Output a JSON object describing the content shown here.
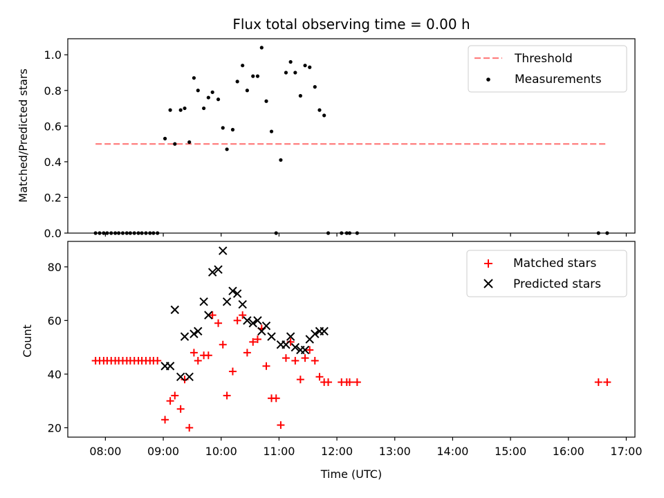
{
  "chart_data": [
    {
      "type": "scatter",
      "title": "Flux total observing time = 0.00 h",
      "xlabel": "",
      "ylabel": "Matched/Predicted stars",
      "xlim": [
        7.35,
        17.15
      ],
      "ylim": [
        0,
        1.09
      ],
      "yticks": [
        0.0,
        0.2,
        0.4,
        0.6,
        0.8,
        1.0
      ],
      "ytick_labels": [
        "0.0",
        "0.2",
        "0.4",
        "0.6",
        "0.8",
        "1.0"
      ],
      "legend_position": "upper right",
      "threshold": {
        "name": "Threshold",
        "value": 0.5,
        "x_range": [
          7.83,
          16.67
        ],
        "color": "#ff7f7f",
        "style": "dashed"
      },
      "series": [
        {
          "name": "Measurements",
          "marker": "dot",
          "color": "#000000",
          "x": [
            7.83,
            7.9,
            7.97,
            8.03,
            8.1,
            8.17,
            8.23,
            8.3,
            8.37,
            8.43,
            8.5,
            8.57,
            8.63,
            8.7,
            8.77,
            8.83,
            8.9,
            9.03,
            9.12,
            9.2,
            9.3,
            9.37,
            9.45,
            9.53,
            9.6,
            9.7,
            9.78,
            9.85,
            9.95,
            10.03,
            10.1,
            10.2,
            10.28,
            10.37,
            10.45,
            10.55,
            10.63,
            10.7,
            10.78,
            10.87,
            10.95,
            11.03,
            11.12,
            11.2,
            11.28,
            11.37,
            11.45,
            11.53,
            11.62,
            11.7,
            11.78,
            11.85,
            12.08,
            12.17,
            12.22,
            12.35,
            16.52,
            16.67
          ],
          "y": [
            0,
            0,
            0,
            0,
            0,
            0,
            0,
            0,
            0,
            0,
            0,
            0,
            0,
            0,
            0,
            0,
            0,
            0.53,
            0.69,
            0.5,
            0.69,
            0.7,
            0.51,
            0.87,
            0.8,
            0.7,
            0.76,
            0.79,
            0.75,
            0.59,
            0.47,
            0.58,
            0.85,
            0.94,
            0.8,
            0.88,
            0.88,
            1.04,
            0.74,
            0.57,
            0,
            0.41,
            0.9,
            0.96,
            0.9,
            0.77,
            0.94,
            0.93,
            0.82,
            0.69,
            0.66,
            0,
            0,
            0,
            0,
            0,
            0,
            0
          ]
        }
      ]
    },
    {
      "type": "scatter",
      "title": "",
      "xlabel": "Time (UTC)",
      "ylabel": "Count",
      "xlim": [
        7.35,
        17.15
      ],
      "ylim": [
        16.5,
        89.5
      ],
      "yticks": [
        20,
        40,
        60,
        80
      ],
      "ytick_labels": [
        "20",
        "40",
        "60",
        "80"
      ],
      "xticks": [
        8,
        9,
        10,
        11,
        12,
        13,
        14,
        15,
        16,
        17
      ],
      "xtick_labels": [
        "08:00",
        "09:00",
        "10:00",
        "11:00",
        "12:00",
        "13:00",
        "14:00",
        "15:00",
        "16:00",
        "17:00"
      ],
      "legend_position": "upper right",
      "series": [
        {
          "name": "Matched stars",
          "marker": "plus",
          "color": "#ff0000",
          "x": [
            7.83,
            7.9,
            7.97,
            8.03,
            8.1,
            8.17,
            8.23,
            8.3,
            8.37,
            8.43,
            8.5,
            8.57,
            8.63,
            8.7,
            8.77,
            8.83,
            8.9,
            9.03,
            9.12,
            9.2,
            9.3,
            9.37,
            9.45,
            9.53,
            9.6,
            9.7,
            9.78,
            9.85,
            9.95,
            10.03,
            10.1,
            10.2,
            10.28,
            10.37,
            10.45,
            10.55,
            10.63,
            10.7,
            10.78,
            10.87,
            10.95,
            11.03,
            11.12,
            11.2,
            11.28,
            11.37,
            11.45,
            11.53,
            11.62,
            11.7,
            11.78,
            11.85,
            12.08,
            12.17,
            12.22,
            12.35,
            16.52,
            16.67
          ],
          "y": [
            45,
            45,
            45,
            45,
            45,
            45,
            45,
            45,
            45,
            45,
            45,
            45,
            45,
            45,
            45,
            45,
            45,
            23,
            30,
            32,
            27,
            38,
            20,
            48,
            45,
            47,
            47,
            62,
            59,
            51,
            32,
            41,
            60,
            62,
            48,
            52,
            53,
            57,
            43,
            31,
            31,
            21,
            46,
            52,
            45,
            38,
            46,
            49,
            45,
            39,
            37,
            37,
            37,
            37,
            37,
            37,
            37,
            37
          ]
        },
        {
          "name": "Predicted stars",
          "marker": "x",
          "color": "#000000",
          "x": [
            9.03,
            9.12,
            9.2,
            9.3,
            9.37,
            9.45,
            9.53,
            9.6,
            9.7,
            9.78,
            9.85,
            9.95,
            10.03,
            10.1,
            10.2,
            10.28,
            10.37,
            10.45,
            10.55,
            10.63,
            10.7,
            10.78,
            10.87,
            11.03,
            11.12,
            11.2,
            11.28,
            11.37,
            11.45,
            11.53,
            11.62,
            11.7,
            11.78
          ],
          "y": [
            43,
            43,
            64,
            39,
            54,
            39,
            55,
            56,
            67,
            62,
            78,
            79,
            86,
            67,
            71,
            70,
            66,
            60,
            59,
            60,
            56,
            58,
            54,
            51,
            51,
            54,
            50,
            49,
            49,
            53,
            55,
            56,
            56
          ]
        }
      ]
    }
  ]
}
